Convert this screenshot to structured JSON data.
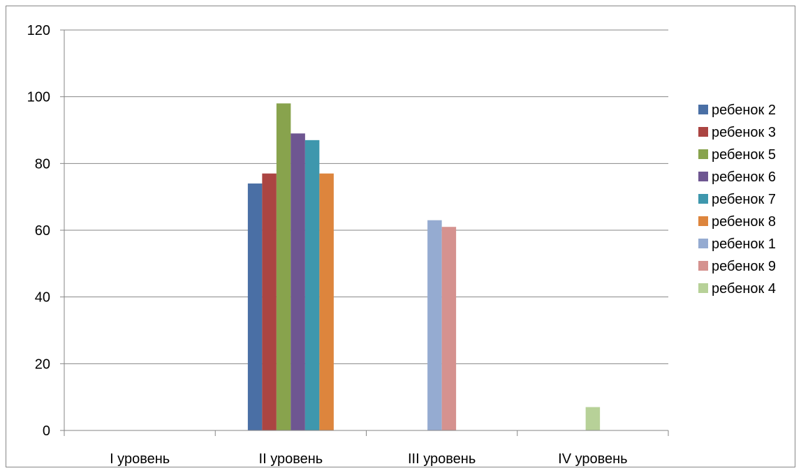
{
  "chart_data": {
    "type": "bar",
    "title": "",
    "xlabel": "",
    "ylabel": "",
    "ylim": [
      0,
      120
    ],
    "yticks": [
      0,
      20,
      40,
      60,
      80,
      100,
      120
    ],
    "grid": true,
    "legend_position": "right",
    "categories": [
      "I уровень",
      "II уровень",
      "III уровень",
      "IV уровень"
    ],
    "groups": [
      {
        "category": "I уровень",
        "series": []
      },
      {
        "category": "II уровень",
        "series": [
          "ребенок 2",
          "ребенок 3",
          "ребенок 5",
          "ребенок 6",
          "ребенок 7",
          "ребенок 8"
        ]
      },
      {
        "category": "III уровень",
        "series": [
          "ребенок 1",
          "ребенок 9"
        ]
      },
      {
        "category": "IV уровень",
        "series": [
          "ребенок 4"
        ]
      }
    ],
    "series": [
      {
        "name": "ребенок 2",
        "color": "#4a6fa5",
        "values": [
          null,
          74,
          null,
          null
        ]
      },
      {
        "name": "ребенок 3",
        "color": "#ab4542",
        "values": [
          null,
          77,
          null,
          null
        ]
      },
      {
        "name": "ребенок 5",
        "color": "#88a34d",
        "values": [
          null,
          98,
          null,
          null
        ]
      },
      {
        "name": "ребенок 6",
        "color": "#6e5691",
        "values": [
          null,
          89,
          null,
          null
        ]
      },
      {
        "name": "ребенок 7",
        "color": "#3e97ad",
        "values": [
          null,
          87,
          null,
          null
        ]
      },
      {
        "name": "ребенок 8",
        "color": "#dd853d",
        "values": [
          null,
          77,
          null,
          null
        ]
      },
      {
        "name": "ребенок 1",
        "color": "#95abd1",
        "values": [
          null,
          null,
          63,
          null
        ]
      },
      {
        "name": "ребенок 9",
        "color": "#d5928f",
        "values": [
          null,
          null,
          61,
          null
        ]
      },
      {
        "name": "ребенок 4",
        "color": "#b7d198",
        "values": [
          null,
          null,
          null,
          7
        ]
      }
    ]
  }
}
